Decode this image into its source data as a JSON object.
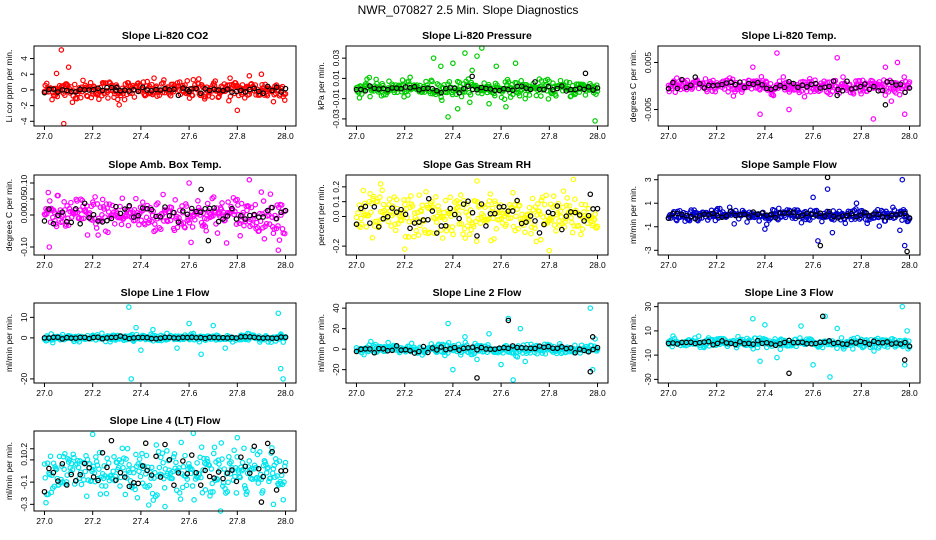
{
  "chart_data": {
    "type": "scatter",
    "title": "NWR_070827  2.5 Min. Slope Diagnostics",
    "x_range": [
      27.0,
      28.0
    ],
    "x_ticks": [
      "27.0",
      "27.2",
      "27.4",
      "27.6",
      "27.8",
      "28.0"
    ],
    "overlay_series_color": "#000000",
    "panels": [
      {
        "title": "Slope Li-820 CO2",
        "ylabel": "Li cor ppm per min.",
        "y_ticks": [
          "-4",
          "-2",
          "0",
          "2",
          "4"
        ],
        "y_tick_values": [
          -4,
          -2,
          0,
          2,
          4
        ],
        "ylim": [
          -4.6,
          5.6
        ],
        "color": "#ff0000",
        "noise": 0.6,
        "outliers": [
          [
            27.07,
            5.1
          ],
          [
            27.1,
            2.9
          ],
          [
            27.08,
            -4.3
          ],
          [
            27.05,
            2.1
          ],
          [
            27.31,
            -1.9
          ],
          [
            27.64,
            1.4
          ],
          [
            27.77,
            1.5
          ],
          [
            27.8,
            -2.6
          ],
          [
            27.85,
            1.8
          ],
          [
            27.9,
            2.0
          ],
          [
            27.95,
            -1.5
          ]
        ],
        "black_noise": 0.2,
        "black_outliers": [
          [
            27.3,
            0.3
          ],
          [
            27.6,
            -0.2
          ]
        ]
      },
      {
        "title": "Slope Li-820 Pressure",
        "ylabel": "kPa per min.",
        "y_ticks": [
          "-0.03",
          "-0.01",
          "0.01",
          "0.03"
        ],
        "y_tick_values": [
          -0.03,
          -0.01,
          0.01,
          0.03
        ],
        "ylim": [
          -0.037,
          0.042
        ],
        "color": "#00cc00",
        "noise": 0.004,
        "outliers": [
          [
            27.32,
            0.03
          ],
          [
            27.35,
            0.022
          ],
          [
            27.38,
            -0.028
          ],
          [
            27.4,
            0.025
          ],
          [
            27.42,
            -0.02
          ],
          [
            27.45,
            0.035
          ],
          [
            27.48,
            0.018
          ],
          [
            27.5,
            0.032
          ],
          [
            27.52,
            0.04
          ],
          [
            27.55,
            -0.015
          ],
          [
            27.58,
            0.022
          ],
          [
            27.62,
            -0.018
          ],
          [
            27.66,
            0.025
          ],
          [
            27.7,
            -0.01
          ],
          [
            27.99,
            -0.032
          ]
        ],
        "black_noise": 0.002,
        "black_outliers": [
          [
            27.48,
            0.012
          ],
          [
            27.95,
            0.015
          ]
        ]
      },
      {
        "title": "Slope Li-820 Temp.",
        "ylabel": "degrees C per min.",
        "y_ticks": [
          "-0.005",
          "0.005"
        ],
        "y_tick_values": [
          -0.005,
          0.005
        ],
        "ylim": [
          -0.0085,
          0.0085
        ],
        "color": "#ff00ff",
        "noise": 0.0008,
        "outliers": [
          [
            27.35,
            0.004
          ],
          [
            27.38,
            -0.006
          ],
          [
            27.45,
            0.007
          ],
          [
            27.5,
            -0.005
          ],
          [
            27.7,
            0.006
          ],
          [
            27.85,
            -0.007
          ],
          [
            27.9,
            0.004
          ],
          [
            27.95,
            0.005
          ],
          [
            27.98,
            -0.006
          ]
        ],
        "black_noise": 0.0006,
        "black_outliers": [
          [
            27.7,
            -0.002
          ],
          [
            27.9,
            -0.004
          ]
        ]
      },
      {
        "title": "Slope Amb. Box Temp.",
        "ylabel": "degrees C per min.",
        "y_ticks": [
          "-0.10",
          "0.00",
          "0.05",
          "0.10"
        ],
        "y_tick_values": [
          -0.1,
          0.0,
          0.05,
          0.1
        ],
        "ylim": [
          -0.125,
          0.125
        ],
        "color": "#ff00ff",
        "noise": 0.03,
        "outliers": [
          [
            27.02,
            -0.1
          ],
          [
            27.6,
            0.1
          ],
          [
            27.85,
            0.11
          ],
          [
            27.97,
            -0.11
          ]
        ],
        "black_noise": 0.02,
        "black_outliers": [
          [
            27.65,
            0.08
          ],
          [
            27.68,
            -0.08
          ]
        ]
      },
      {
        "title": "Slope Gas Stream RH",
        "ylabel": "percent per min.",
        "y_ticks": [
          "-0.2",
          "0.0",
          "0.1",
          "0.2"
        ],
        "y_tick_values": [
          -0.2,
          0.0,
          0.1,
          0.2
        ],
        "ylim": [
          -0.26,
          0.28
        ],
        "color": "#ffff00",
        "noise": 0.075,
        "outliers": [
          [
            27.1,
            0.22
          ],
          [
            27.2,
            -0.22
          ],
          [
            27.5,
            0.24
          ],
          [
            27.8,
            -0.23
          ],
          [
            27.9,
            0.25
          ]
        ],
        "black_noise": 0.05,
        "black_outliers": [
          [
            27.3,
            0.12
          ],
          [
            27.97,
            0.15
          ]
        ]
      },
      {
        "title": "Slope Sample Flow",
        "ylabel": "ml/min per min.",
        "y_ticks": [
          "-3",
          "-1",
          "1",
          "3"
        ],
        "y_tick_values": [
          -3,
          -1,
          1,
          3
        ],
        "ylim": [
          -3.4,
          3.4
        ],
        "color": "#0000cc",
        "noise": 0.25,
        "outliers": [
          [
            27.4,
            -1.2
          ],
          [
            27.6,
            1.5
          ],
          [
            27.62,
            -2.2
          ],
          [
            27.66,
            2.2
          ],
          [
            27.68,
            -1.5
          ],
          [
            27.78,
            1.0
          ],
          [
            27.97,
            3.0
          ],
          [
            27.98,
            -2.6
          ],
          [
            27.96,
            -1.3
          ]
        ],
        "black_noise": 0.15,
        "black_outliers": [
          [
            27.63,
            -2.6
          ],
          [
            27.66,
            3.2
          ],
          [
            27.99,
            -3.1
          ]
        ]
      },
      {
        "title": "Slope Line 1 Flow",
        "ylabel": "ml/min per min.",
        "y_ticks": [
          "-20",
          "0",
          "10"
        ],
        "y_tick_values": [
          -20,
          0,
          10
        ],
        "ylim": [
          -22,
          17
        ],
        "color": "#00e5ee",
        "noise": 0.8,
        "outliers": [
          [
            27.35,
            15
          ],
          [
            27.36,
            -20
          ],
          [
            27.38,
            5
          ],
          [
            27.4,
            -6
          ],
          [
            27.45,
            4
          ],
          [
            27.55,
            -5
          ],
          [
            27.6,
            7
          ],
          [
            27.65,
            -8
          ],
          [
            27.7,
            6
          ],
          [
            27.75,
            -5
          ],
          [
            27.97,
            12
          ],
          [
            27.98,
            -15
          ],
          [
            27.99,
            -20
          ]
        ],
        "black_noise": 0.3,
        "black_outliers": []
      },
      {
        "title": "Slope Line 2 Flow",
        "ylabel": "ml/min per min.",
        "y_ticks": [
          "-20",
          "0",
          "20",
          "40"
        ],
        "y_tick_values": [
          -20,
          0,
          20,
          40
        ],
        "ylim": [
          -33,
          45
        ],
        "color": "#00e5ee",
        "noise": 2.5,
        "outliers": [
          [
            27.38,
            25
          ],
          [
            27.4,
            -20
          ],
          [
            27.45,
            12
          ],
          [
            27.5,
            -10
          ],
          [
            27.55,
            15
          ],
          [
            27.6,
            -15
          ],
          [
            27.63,
            30
          ],
          [
            27.65,
            -30
          ],
          [
            27.68,
            20
          ],
          [
            27.7,
            -12
          ],
          [
            27.97,
            40
          ],
          [
            27.98,
            -20
          ],
          [
            27.99,
            10
          ]
        ],
        "black_noise": 1.5,
        "black_outliers": [
          [
            27.5,
            -28
          ],
          [
            27.63,
            28
          ],
          [
            27.97,
            -22
          ],
          [
            27.98,
            12
          ]
        ]
      },
      {
        "title": "Slope Line 3 Flow",
        "ylabel": "ml/min per min.",
        "y_ticks": [
          "-30",
          "-10",
          "10",
          "30"
        ],
        "y_tick_values": [
          -30,
          -10,
          10,
          30
        ],
        "ylim": [
          -33,
          33
        ],
        "color": "#00e5ee",
        "noise": 2.0,
        "outliers": [
          [
            27.35,
            20
          ],
          [
            27.38,
            -15
          ],
          [
            27.4,
            15
          ],
          [
            27.45,
            -12
          ],
          [
            27.55,
            14
          ],
          [
            27.6,
            -18
          ],
          [
            27.65,
            22
          ],
          [
            27.67,
            -28
          ],
          [
            27.7,
            12
          ],
          [
            27.97,
            30
          ],
          [
            27.98,
            -18
          ],
          [
            27.99,
            10
          ]
        ],
        "black_noise": 1.0,
        "black_outliers": [
          [
            27.5,
            -25
          ],
          [
            27.64,
            22
          ],
          [
            27.98,
            -14
          ]
        ]
      },
      {
        "title": "Slope Line 4 (LT) Flow",
        "ylabel": "ml/min per min.",
        "y_ticks": [
          "-0.3",
          "-0.1",
          "0.1",
          "0.2"
        ],
        "y_tick_values": [
          -0.3,
          -0.1,
          0.1,
          0.2
        ],
        "ylim": [
          -0.36,
          0.36
        ],
        "color": "#00e5ee",
        "noise": 0.12,
        "outliers": [
          [
            27.2,
            0.33
          ],
          [
            27.5,
            -0.32
          ],
          [
            27.8,
            0.3
          ],
          [
            27.95,
            -0.3
          ]
        ],
        "black_noise": 0.1,
        "black_outliers": [
          [
            27.42,
            0.25
          ],
          [
            27.9,
            -0.28
          ]
        ]
      }
    ]
  }
}
